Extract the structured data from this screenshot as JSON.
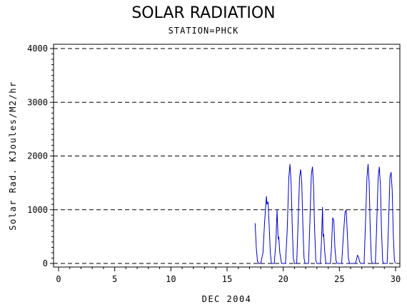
{
  "chart_data": {
    "type": "line",
    "title": "SOLAR RADIATION",
    "subtitle": "STATION=PHCK",
    "xlabel": "DEC 2004",
    "ylabel": "Solar Rad. KJoules/M2/hr",
    "xlim": [
      0,
      30
    ],
    "ylim": [
      0,
      4000
    ],
    "xticks": [
      0,
      5,
      10,
      15,
      20,
      25,
      30
    ],
    "yticks": [
      0,
      1000,
      2000,
      3000,
      4000
    ],
    "grid": "horizontal-dashed",
    "line_color": "#0000cc",
    "series": [
      {
        "values": [
          [
            17.5,
            750
          ],
          [
            17.6,
            300
          ],
          [
            17.7,
            50
          ],
          [
            17.8,
            0
          ],
          [
            18.0,
            0
          ],
          [
            18.2,
            200
          ],
          [
            18.35,
            800
          ],
          [
            18.5,
            1250
          ],
          [
            18.55,
            1100
          ],
          [
            18.65,
            1150
          ],
          [
            18.75,
            700
          ],
          [
            18.85,
            200
          ],
          [
            18.95,
            0
          ],
          [
            19.2,
            0
          ],
          [
            19.35,
            400
          ],
          [
            19.45,
            1000
          ],
          [
            19.5,
            700
          ],
          [
            19.55,
            450
          ],
          [
            19.6,
            500
          ],
          [
            19.7,
            200
          ],
          [
            19.85,
            0
          ],
          [
            20.2,
            0
          ],
          [
            20.35,
            600
          ],
          [
            20.5,
            1600
          ],
          [
            20.6,
            1850
          ],
          [
            20.7,
            1500
          ],
          [
            20.8,
            700
          ],
          [
            20.9,
            100
          ],
          [
            21.0,
            0
          ],
          [
            21.2,
            0
          ],
          [
            21.3,
            600
          ],
          [
            21.45,
            1600
          ],
          [
            21.55,
            1750
          ],
          [
            21.65,
            1500
          ],
          [
            21.75,
            700
          ],
          [
            21.85,
            100
          ],
          [
            21.95,
            0
          ],
          [
            22.25,
            0
          ],
          [
            22.35,
            600
          ],
          [
            22.5,
            1650
          ],
          [
            22.6,
            1800
          ],
          [
            22.7,
            1450
          ],
          [
            22.8,
            600
          ],
          [
            22.9,
            50
          ],
          [
            23.0,
            0
          ],
          [
            23.3,
            0
          ],
          [
            23.4,
            400
          ],
          [
            23.5,
            1050
          ],
          [
            23.55,
            500
          ],
          [
            23.6,
            550
          ],
          [
            23.7,
            200
          ],
          [
            23.8,
            0
          ],
          [
            24.2,
            0
          ],
          [
            24.3,
            300
          ],
          [
            24.4,
            850
          ],
          [
            24.5,
            800
          ],
          [
            24.6,
            300
          ],
          [
            24.7,
            50
          ],
          [
            24.8,
            0
          ],
          [
            25.2,
            0
          ],
          [
            25.35,
            500
          ],
          [
            25.5,
            950
          ],
          [
            25.6,
            1000
          ],
          [
            25.7,
            600
          ],
          [
            25.8,
            100
          ],
          [
            25.9,
            0
          ],
          [
            26.4,
            0
          ],
          [
            26.5,
            50
          ],
          [
            26.6,
            150
          ],
          [
            26.7,
            120
          ],
          [
            26.8,
            30
          ],
          [
            26.9,
            0
          ],
          [
            27.2,
            0
          ],
          [
            27.3,
            600
          ],
          [
            27.45,
            1600
          ],
          [
            27.55,
            1850
          ],
          [
            27.65,
            1500
          ],
          [
            27.75,
            600
          ],
          [
            27.85,
            50
          ],
          [
            27.95,
            0
          ],
          [
            28.2,
            0
          ],
          [
            28.3,
            600
          ],
          [
            28.45,
            1600
          ],
          [
            28.55,
            1800
          ],
          [
            28.65,
            1450
          ],
          [
            28.75,
            600
          ],
          [
            28.85,
            50
          ],
          [
            28.95,
            0
          ],
          [
            29.25,
            0
          ],
          [
            29.35,
            600
          ],
          [
            29.5,
            1600
          ],
          [
            29.6,
            1700
          ],
          [
            29.7,
            1350
          ],
          [
            29.8,
            500
          ],
          [
            29.9,
            50
          ],
          [
            30.0,
            0
          ]
        ]
      }
    ]
  }
}
